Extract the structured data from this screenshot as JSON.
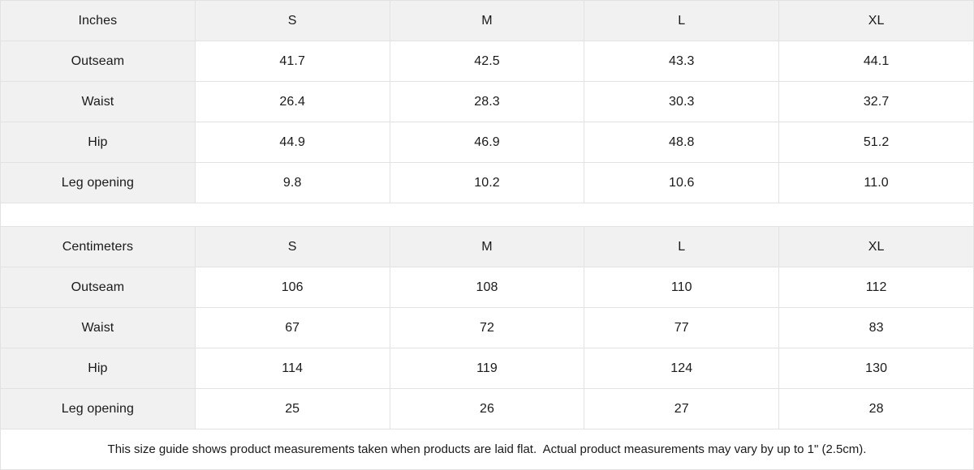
{
  "tables": [
    {
      "unit_label": "Inches",
      "sizes": [
        "S",
        "M",
        "L",
        "XL"
      ],
      "rows": [
        {
          "label": "Outseam",
          "values": [
            "41.7",
            "42.5",
            "43.3",
            "44.1"
          ]
        },
        {
          "label": "Waist",
          "values": [
            "26.4",
            "28.3",
            "30.3",
            "32.7"
          ]
        },
        {
          "label": "Hip",
          "values": [
            "44.9",
            "46.9",
            "48.8",
            "51.2"
          ]
        },
        {
          "label": "Leg opening",
          "values": [
            "9.8",
            "10.2",
            "10.6",
            "11.0"
          ]
        }
      ]
    },
    {
      "unit_label": "Centimeters",
      "sizes": [
        "S",
        "M",
        "L",
        "XL"
      ],
      "rows": [
        {
          "label": "Outseam",
          "values": [
            "106",
            "108",
            "110",
            "112"
          ]
        },
        {
          "label": "Waist",
          "values": [
            "67",
            "72",
            "77",
            "83"
          ]
        },
        {
          "label": "Hip",
          "values": [
            "114",
            "119",
            "124",
            "130"
          ]
        },
        {
          "label": "Leg opening",
          "values": [
            "25",
            "26",
            "27",
            "28"
          ]
        }
      ]
    }
  ],
  "footer": {
    "note": "This size guide shows product measurements taken when products are laid flat.  Actual product measurements may vary by up to 1\" (2.5cm)."
  },
  "colors": {
    "header_background": "#f1f1f1",
    "border": "#e2e2e2",
    "text": "#1a1a1a"
  }
}
